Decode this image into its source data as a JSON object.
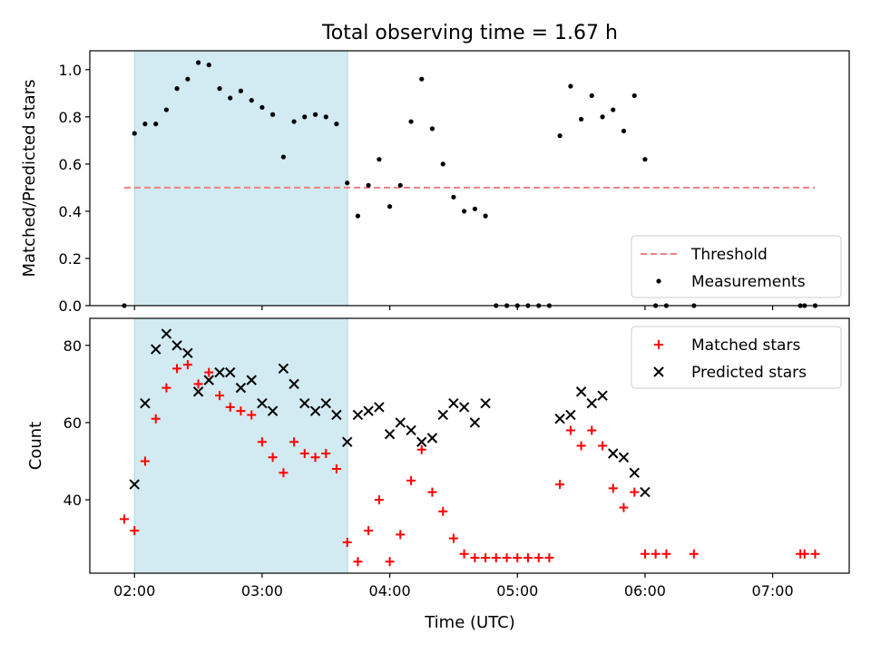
{
  "title": "Total observing time = 1.67 h",
  "xlabel": "Time (UTC)",
  "x_tick_labels": [
    "02:00",
    "03:00",
    "04:00",
    "05:00",
    "06:00",
    "07:00"
  ],
  "colors": {
    "shade": "#add8e6",
    "threshold": "#f08080",
    "measurements": "#000000",
    "matched": "#ff0000",
    "predicted": "#000000"
  },
  "chart_data": [
    {
      "type": "scatter",
      "ylabel": "Matched/Predicted stars",
      "ylim": [
        0,
        1.08
      ],
      "xlim": [
        1.65,
        7.6
      ],
      "y_tick_labels": [
        "0.0",
        "0.2",
        "0.4",
        "0.6",
        "0.8",
        "1.0"
      ],
      "shaded_span": [
        2.0,
        3.67
      ],
      "threshold": {
        "name": "Threshold",
        "value": 0.5,
        "x_range": [
          1.92,
          7.33
        ],
        "style": "dashed"
      },
      "legend": {
        "position": "lower-right",
        "entries": [
          "Threshold",
          "Measurements"
        ]
      },
      "series": [
        {
          "name": "Measurements",
          "marker": "dot",
          "points": [
            [
              1.92,
              0.0
            ],
            [
              2.0,
              0.73
            ],
            [
              2.083,
              0.77
            ],
            [
              2.167,
              0.77
            ],
            [
              2.25,
              0.83
            ],
            [
              2.333,
              0.92
            ],
            [
              2.417,
              0.96
            ],
            [
              2.5,
              1.03
            ],
            [
              2.583,
              1.02
            ],
            [
              2.667,
              0.92
            ],
            [
              2.75,
              0.88
            ],
            [
              2.833,
              0.91
            ],
            [
              2.917,
              0.87
            ],
            [
              3.0,
              0.84
            ],
            [
              3.083,
              0.81
            ],
            [
              3.167,
              0.63
            ],
            [
              3.25,
              0.78
            ],
            [
              3.333,
              0.8
            ],
            [
              3.417,
              0.81
            ],
            [
              3.5,
              0.8
            ],
            [
              3.583,
              0.77
            ],
            [
              3.667,
              0.52
            ],
            [
              3.75,
              0.38
            ],
            [
              3.833,
              0.51
            ],
            [
              3.917,
              0.62
            ],
            [
              4.0,
              0.42
            ],
            [
              4.083,
              0.51
            ],
            [
              4.167,
              0.78
            ],
            [
              4.25,
              0.96
            ],
            [
              4.333,
              0.75
            ],
            [
              4.417,
              0.6
            ],
            [
              4.5,
              0.46
            ],
            [
              4.583,
              0.4
            ],
            [
              4.667,
              0.41
            ],
            [
              4.75,
              0.38
            ],
            [
              4.833,
              0.0
            ],
            [
              4.917,
              0.0
            ],
            [
              5.0,
              0.0
            ],
            [
              5.083,
              0.0
            ],
            [
              5.167,
              0.0
            ],
            [
              5.25,
              0.0
            ],
            [
              5.333,
              0.72
            ],
            [
              5.417,
              0.93
            ],
            [
              5.5,
              0.79
            ],
            [
              5.583,
              0.89
            ],
            [
              5.667,
              0.8
            ],
            [
              5.75,
              0.83
            ],
            [
              5.833,
              0.74
            ],
            [
              5.917,
              0.89
            ],
            [
              6.0,
              0.62
            ],
            [
              6.083,
              0.0
            ],
            [
              6.167,
              0.0
            ],
            [
              6.383,
              0.0
            ],
            [
              7.217,
              0.0
            ],
            [
              7.25,
              0.0
            ],
            [
              7.333,
              0.0
            ]
          ]
        }
      ]
    },
    {
      "type": "scatter",
      "ylabel": "Count",
      "ylim": [
        21,
        87
      ],
      "xlim": [
        1.65,
        7.6
      ],
      "y_tick_labels": [
        "40",
        "60",
        "80"
      ],
      "shaded_span": [
        2.0,
        3.67
      ],
      "legend": {
        "position": "upper-right",
        "entries": [
          "Matched stars",
          "Predicted stars"
        ]
      },
      "series": [
        {
          "name": "Matched stars",
          "marker": "plus",
          "points": [
            [
              1.92,
              35
            ],
            [
              2.0,
              32
            ],
            [
              2.083,
              50
            ],
            [
              2.167,
              61
            ],
            [
              2.25,
              69
            ],
            [
              2.333,
              74
            ],
            [
              2.417,
              75
            ],
            [
              2.5,
              70
            ],
            [
              2.583,
              73
            ],
            [
              2.667,
              67
            ],
            [
              2.75,
              64
            ],
            [
              2.833,
              63
            ],
            [
              2.917,
              62
            ],
            [
              3.0,
              55
            ],
            [
              3.083,
              51
            ],
            [
              3.167,
              47
            ],
            [
              3.25,
              55
            ],
            [
              3.333,
              52
            ],
            [
              3.417,
              51
            ],
            [
              3.5,
              52
            ],
            [
              3.583,
              48
            ],
            [
              3.667,
              29
            ],
            [
              3.75,
              24
            ],
            [
              3.833,
              32
            ],
            [
              3.917,
              40
            ],
            [
              4.0,
              24
            ],
            [
              4.083,
              31
            ],
            [
              4.167,
              45
            ],
            [
              4.25,
              53
            ],
            [
              4.333,
              42
            ],
            [
              4.417,
              37
            ],
            [
              4.5,
              30
            ],
            [
              4.583,
              26
            ],
            [
              4.667,
              25
            ],
            [
              4.75,
              25
            ],
            [
              4.833,
              25
            ],
            [
              4.917,
              25
            ],
            [
              5.0,
              25
            ],
            [
              5.083,
              25
            ],
            [
              5.167,
              25
            ],
            [
              5.25,
              25
            ],
            [
              5.333,
              44
            ],
            [
              5.417,
              58
            ],
            [
              5.5,
              54
            ],
            [
              5.583,
              58
            ],
            [
              5.667,
              54
            ],
            [
              5.75,
              43
            ],
            [
              5.833,
              38
            ],
            [
              5.917,
              42
            ],
            [
              6.0,
              26
            ],
            [
              6.083,
              26
            ],
            [
              6.167,
              26
            ],
            [
              6.383,
              26
            ],
            [
              7.217,
              26
            ],
            [
              7.25,
              26
            ],
            [
              7.333,
              26
            ]
          ]
        },
        {
          "name": "Predicted stars",
          "marker": "x",
          "points": [
            [
              2.0,
              44
            ],
            [
              2.083,
              65
            ],
            [
              2.167,
              79
            ],
            [
              2.25,
              83
            ],
            [
              2.333,
              80
            ],
            [
              2.417,
              78
            ],
            [
              2.5,
              68
            ],
            [
              2.583,
              71
            ],
            [
              2.667,
              73
            ],
            [
              2.75,
              73
            ],
            [
              2.833,
              69
            ],
            [
              2.917,
              71
            ],
            [
              3.0,
              65
            ],
            [
              3.083,
              63
            ],
            [
              3.167,
              74
            ],
            [
              3.25,
              70
            ],
            [
              3.333,
              65
            ],
            [
              3.417,
              63
            ],
            [
              3.5,
              65
            ],
            [
              3.583,
              62
            ],
            [
              3.667,
              55
            ],
            [
              3.75,
              62
            ],
            [
              3.833,
              63
            ],
            [
              3.917,
              64
            ],
            [
              4.0,
              57
            ],
            [
              4.083,
              60
            ],
            [
              4.167,
              58
            ],
            [
              4.25,
              55
            ],
            [
              4.333,
              56
            ],
            [
              4.417,
              62
            ],
            [
              4.5,
              65
            ],
            [
              4.583,
              64
            ],
            [
              4.667,
              60
            ],
            [
              4.75,
              65
            ],
            [
              5.333,
              61
            ],
            [
              5.417,
              62
            ],
            [
              5.5,
              68
            ],
            [
              5.583,
              65
            ],
            [
              5.667,
              67
            ],
            [
              5.75,
              52
            ],
            [
              5.833,
              51
            ],
            [
              5.917,
              47
            ],
            [
              6.0,
              42
            ]
          ]
        }
      ]
    }
  ]
}
